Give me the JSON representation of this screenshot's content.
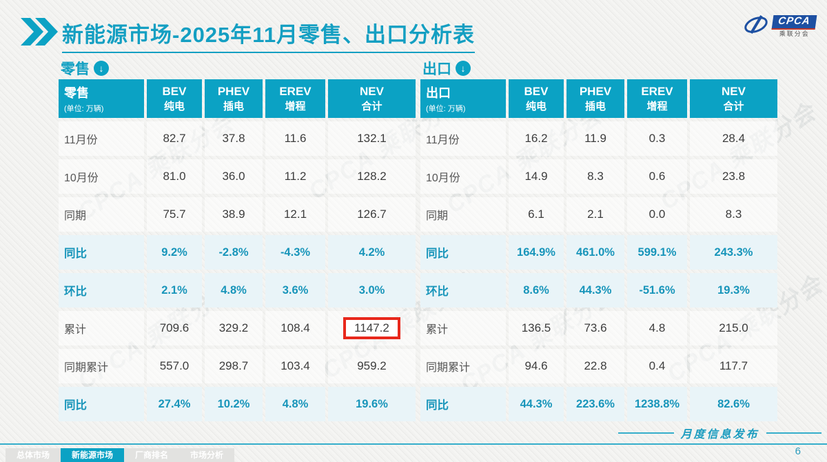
{
  "colors": {
    "teal": "#0ba2c4",
    "teal_text": "#149fc2",
    "pale_blue_row": "#e9f4f8",
    "highlight_red": "#e8281c",
    "logo_blue": "#1d50a2"
  },
  "title": {
    "text": "新能源市场-2025年11月零售、出口分析表"
  },
  "logo": {
    "en": "CPCA",
    "cn": "乘联分会"
  },
  "watermark": {
    "text": "CPCA 乘联分会"
  },
  "tables": [
    {
      "section_label": "零售",
      "corner": {
        "label": "零售",
        "unit": "(单位: 万辆)"
      },
      "columns": [
        {
          "en": "BEV",
          "cn": "纯电"
        },
        {
          "en": "PHEV",
          "cn": "插电"
        },
        {
          "en": "EREV",
          "cn": "增程"
        },
        {
          "en": "NEV",
          "cn": "合计"
        }
      ],
      "rows": [
        {
          "label": "11月份",
          "type": "data",
          "values": [
            "82.7",
            "37.8",
            "11.6",
            "132.1"
          ]
        },
        {
          "label": "10月份",
          "type": "data",
          "values": [
            "81.0",
            "36.0",
            "11.2",
            "128.2"
          ]
        },
        {
          "label": "同期",
          "type": "data",
          "values": [
            "75.7",
            "38.9",
            "12.1",
            "126.7"
          ]
        },
        {
          "label": "同比",
          "type": "pct",
          "values": [
            "9.2%",
            "-2.8%",
            "-4.3%",
            "4.2%"
          ]
        },
        {
          "label": "环比",
          "type": "pct",
          "values": [
            "2.1%",
            "4.8%",
            "3.6%",
            "3.0%"
          ]
        },
        {
          "label": "累计",
          "type": "data",
          "values": [
            "709.6",
            "329.2",
            "108.4",
            "1147.2"
          ],
          "highlight": [
            3
          ]
        },
        {
          "label": "同期累计",
          "type": "data",
          "values": [
            "557.0",
            "298.7",
            "103.4",
            "959.2"
          ]
        },
        {
          "label": "同比",
          "type": "pct",
          "values": [
            "27.4%",
            "10.2%",
            "4.8%",
            "19.6%"
          ]
        }
      ]
    },
    {
      "section_label": "出口",
      "corner": {
        "label": "出口",
        "unit": "(单位: 万辆)"
      },
      "columns": [
        {
          "en": "BEV",
          "cn": "纯电"
        },
        {
          "en": "PHEV",
          "cn": "插电"
        },
        {
          "en": "EREV",
          "cn": "增程"
        },
        {
          "en": "NEV",
          "cn": "合计"
        }
      ],
      "rows": [
        {
          "label": "11月份",
          "type": "data",
          "values": [
            "16.2",
            "11.9",
            "0.3",
            "28.4"
          ]
        },
        {
          "label": "10月份",
          "type": "data",
          "values": [
            "14.9",
            "8.3",
            "0.6",
            "23.8"
          ]
        },
        {
          "label": "同期",
          "type": "data",
          "values": [
            "6.1",
            "2.1",
            "0.0",
            "8.3"
          ]
        },
        {
          "label": "同比",
          "type": "pct",
          "values": [
            "164.9%",
            "461.0%",
            "599.1%",
            "243.3%"
          ]
        },
        {
          "label": "环比",
          "type": "pct",
          "values": [
            "8.6%",
            "44.3%",
            "-51.6%",
            "19.3%"
          ]
        },
        {
          "label": "累计",
          "type": "data",
          "values": [
            "136.5",
            "73.6",
            "4.8",
            "215.0"
          ]
        },
        {
          "label": "同期累计",
          "type": "data",
          "values": [
            "94.6",
            "22.8",
            "0.4",
            "117.7"
          ]
        },
        {
          "label": "同比",
          "type": "pct",
          "values": [
            "44.3%",
            "223.6%",
            "1238.8%",
            "82.6%"
          ]
        }
      ]
    }
  ],
  "footer": {
    "tabs": [
      {
        "label": "总体市场",
        "active": false
      },
      {
        "label": "新能源市场",
        "active": true
      },
      {
        "label": "厂商排名",
        "active": false
      },
      {
        "label": "市场分析",
        "active": false
      }
    ],
    "publish_label": "月度信息发布",
    "page_number": "6"
  }
}
